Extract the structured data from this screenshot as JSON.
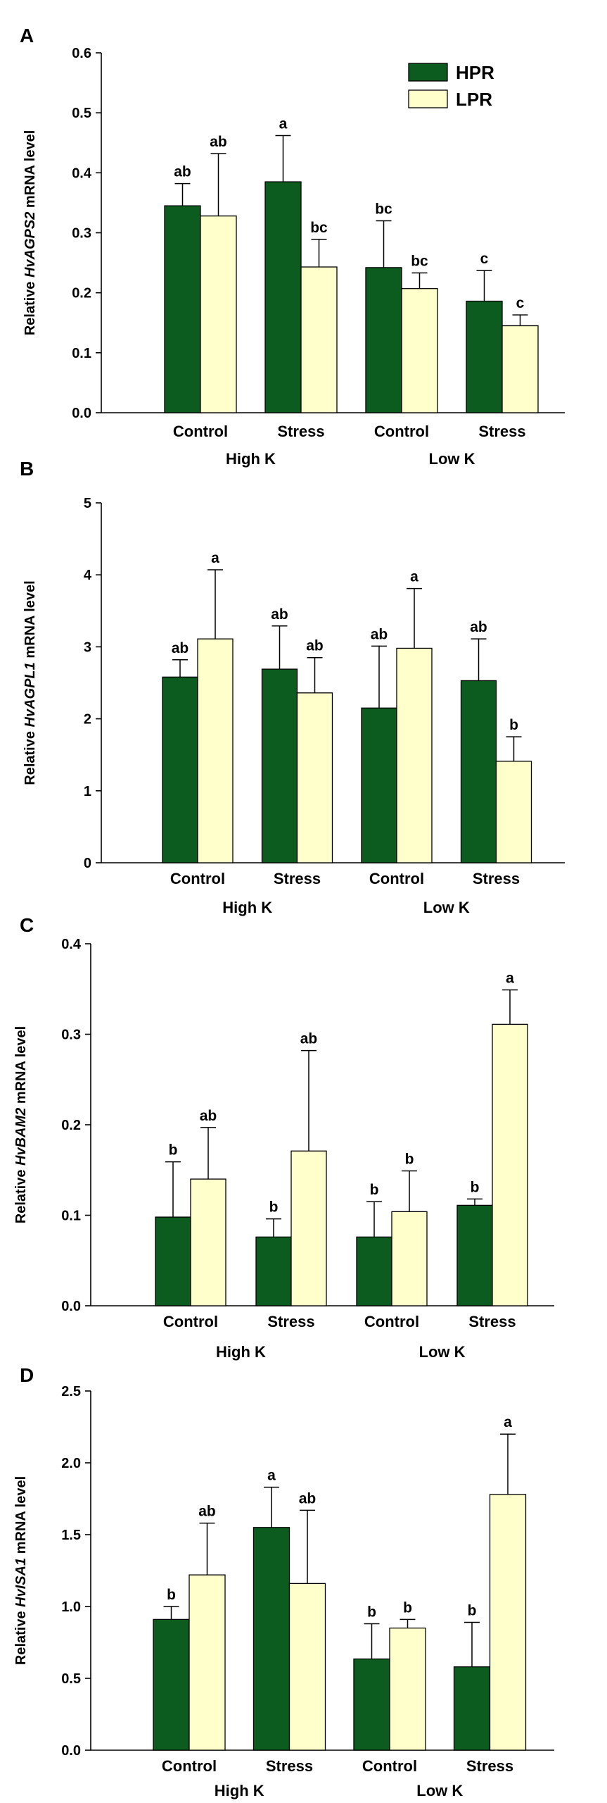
{
  "colors": {
    "HPR": "#0c5c1f",
    "LPR": "#ffffcc"
  },
  "chart_data": [
    {
      "panel": "A",
      "type": "bar",
      "ylabel": {
        "prefix": "Relative ",
        "gene": "HvAGPS2",
        "suffix": " mRNA level"
      },
      "ylim": [
        0,
        0.6
      ],
      "yticks": [
        0,
        0.1,
        0.2,
        0.3,
        0.4,
        0.5,
        0.6
      ],
      "ytick_labels": [
        "0.0",
        "0.1",
        "0.2",
        "0.3",
        "0.4",
        "0.5",
        "0.6"
      ],
      "categories": [
        "Control",
        "Stress",
        "Control",
        "Stress"
      ],
      "groups": [
        "High K",
        "Low K"
      ],
      "legend": {
        "placement": "top-right"
      },
      "series": [
        {
          "name": "HPR",
          "values": [
            0.345,
            0.385,
            0.242,
            0.186
          ],
          "errors": [
            0.037,
            0.077,
            0.078,
            0.051
          ],
          "letters": [
            "ab",
            "a",
            "bc",
            "c"
          ]
        },
        {
          "name": "LPR",
          "values": [
            0.328,
            0.243,
            0.207,
            0.145
          ],
          "errors": [
            0.104,
            0.046,
            0.026,
            0.018
          ],
          "letters": [
            "ab",
            "bc",
            "bc",
            "c"
          ]
        }
      ]
    },
    {
      "panel": "B",
      "type": "bar",
      "ylabel": {
        "prefix": "Relative ",
        "gene": "HvAGPL1",
        "suffix": " mRNA level"
      },
      "ylim": [
        0,
        5
      ],
      "yticks": [
        0,
        1,
        2,
        3,
        4,
        5
      ],
      "ytick_labels": [
        "0",
        "1",
        "2",
        "3",
        "4",
        "5"
      ],
      "categories": [
        "Control",
        "Stress",
        "Control",
        "Stress"
      ],
      "groups": [
        "High K",
        "Low K"
      ],
      "series": [
        {
          "name": "HPR",
          "values": [
            2.58,
            2.69,
            2.15,
            2.53
          ],
          "errors": [
            0.24,
            0.6,
            0.86,
            0.58
          ],
          "letters": [
            "ab",
            "ab",
            "ab",
            "ab"
          ]
        },
        {
          "name": "LPR",
          "values": [
            3.11,
            2.36,
            2.98,
            1.41
          ],
          "errors": [
            0.96,
            0.49,
            0.83,
            0.34
          ],
          "letters": [
            "a",
            "ab",
            "a",
            "b"
          ]
        }
      ]
    },
    {
      "panel": "C",
      "type": "bar",
      "ylabel": {
        "prefix": "Relative ",
        "gene": "HvBAM2",
        "suffix": " mRNA level"
      },
      "ylim": [
        0,
        0.4
      ],
      "yticks": [
        0,
        0.1,
        0.2,
        0.3,
        0.4
      ],
      "ytick_labels": [
        "0.0",
        "0.1",
        "0.2",
        "0.3",
        "0.4"
      ],
      "categories": [
        "Control",
        "Stress",
        "Control",
        "Stress"
      ],
      "groups": [
        "High K",
        "Low K"
      ],
      "series": [
        {
          "name": "HPR",
          "values": [
            0.098,
            0.076,
            0.076,
            0.111
          ],
          "errors": [
            0.061,
            0.02,
            0.039,
            0.007
          ],
          "letters": [
            "b",
            "b",
            "b",
            "b"
          ]
        },
        {
          "name": "LPR",
          "values": [
            0.14,
            0.171,
            0.104,
            0.311
          ],
          "errors": [
            0.057,
            0.111,
            0.045,
            0.038
          ],
          "letters": [
            "ab",
            "ab",
            "b",
            "a"
          ]
        }
      ]
    },
    {
      "panel": "D",
      "type": "bar",
      "ylabel": {
        "prefix": "Relative ",
        "gene": "HvISA1",
        "suffix": " mRNA level"
      },
      "ylim": [
        0,
        2.5
      ],
      "yticks": [
        0,
        0.5,
        1.0,
        1.5,
        2.0,
        2.5
      ],
      "ytick_labels": [
        "0.0",
        "0.5",
        "1.0",
        "1.5",
        "2.0",
        "2.5"
      ],
      "categories": [
        "Control",
        "Stress",
        "Control",
        "Stress"
      ],
      "groups": [
        "High K",
        "Low K"
      ],
      "series": [
        {
          "name": "HPR",
          "values": [
            0.91,
            1.55,
            0.635,
            0.58
          ],
          "errors": [
            0.09,
            0.28,
            0.245,
            0.31
          ],
          "letters": [
            "b",
            "a",
            "b",
            "b"
          ]
        },
        {
          "name": "LPR",
          "values": [
            1.22,
            1.16,
            0.85,
            1.78
          ],
          "errors": [
            0.36,
            0.51,
            0.06,
            0.42
          ],
          "letters": [
            "ab",
            "ab",
            "b",
            "a"
          ]
        }
      ]
    }
  ]
}
